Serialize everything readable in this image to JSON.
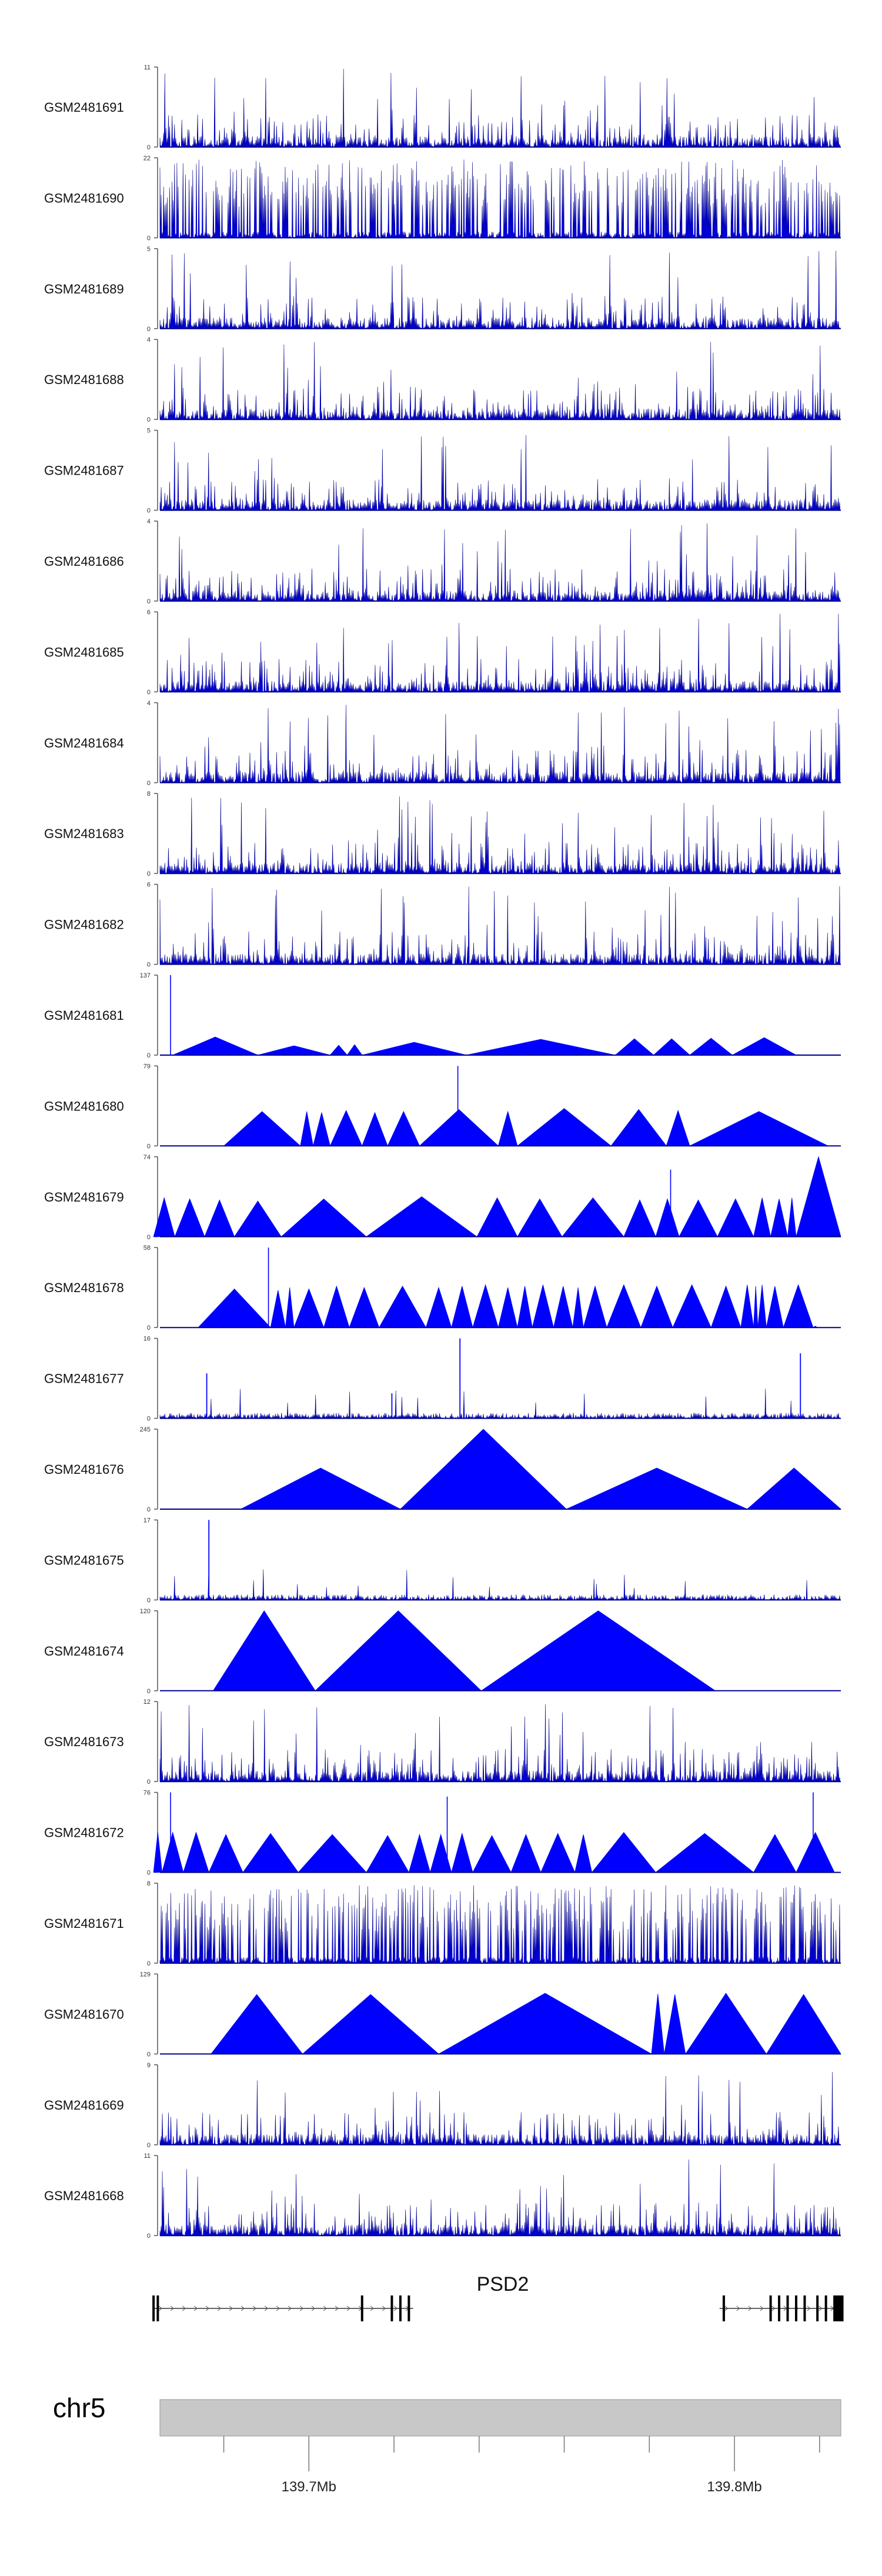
{
  "chart_data": {
    "type": "area",
    "title": "",
    "genome": "chr5",
    "region_mb": [
      139.665,
      139.825
    ],
    "colors": {
      "signal": "#0000ff",
      "signal_edge": "#00008b",
      "ideogram": "#c8c8c8",
      "gene": "#000000"
    },
    "tracks": [
      {
        "name": "GSM2481691",
        "ylim": [
          0,
          11
        ],
        "style": "dense",
        "seed": 11
      },
      {
        "name": "GSM2481690",
        "ylim": [
          0,
          22
        ],
        "style": "sparse",
        "seed": 12
      },
      {
        "name": "GSM2481689",
        "ylim": [
          0,
          5
        ],
        "style": "dense",
        "seed": 13
      },
      {
        "name": "GSM2481688",
        "ylim": [
          0,
          4
        ],
        "style": "dense",
        "seed": 14
      },
      {
        "name": "GSM2481687",
        "ylim": [
          0,
          5
        ],
        "style": "dense",
        "seed": 15
      },
      {
        "name": "GSM2481686",
        "ylim": [
          0,
          4
        ],
        "style": "dense",
        "seed": 16
      },
      {
        "name": "GSM2481685",
        "ylim": [
          0,
          6
        ],
        "style": "dense",
        "seed": 17
      },
      {
        "name": "GSM2481684",
        "ylim": [
          0,
          4
        ],
        "style": "dense",
        "seed": 18
      },
      {
        "name": "GSM2481683",
        "ylim": [
          0,
          8
        ],
        "style": "dense",
        "seed": 19
      },
      {
        "name": "GSM2481682",
        "ylim": [
          0,
          6
        ],
        "style": "dense",
        "seed": 20
      },
      {
        "name": "GSM2481681",
        "ylim": [
          0,
          137
        ],
        "style": "peaks",
        "peaks": [
          [
            139.668,
            139.688,
            31
          ],
          [
            139.688,
            139.705,
            16
          ],
          [
            139.705,
            139.709,
            17
          ],
          [
            139.709,
            139.7125,
            18
          ],
          [
            139.7125,
            139.737,
            22
          ],
          [
            139.737,
            139.772,
            27
          ],
          [
            139.772,
            139.781,
            28
          ],
          [
            139.781,
            139.7895,
            28
          ],
          [
            139.7895,
            139.7995,
            29
          ],
          [
            139.7995,
            139.8145,
            30
          ],
          [
            139.8145,
            139.8155,
            1
          ]
        ],
        "spikes": [
          [
            139.6675,
            137
          ]
        ]
      },
      {
        "name": "GSM2481680",
        "ylim": [
          0,
          79
        ],
        "style": "peaks",
        "peaks": [
          [
            139.68,
            139.698,
            34
          ],
          [
            139.698,
            139.701,
            34
          ],
          [
            139.701,
            139.705,
            33
          ],
          [
            139.705,
            139.7125,
            35
          ],
          [
            139.7125,
            139.7185,
            33
          ],
          [
            139.7185,
            139.726,
            34
          ],
          [
            139.726,
            139.7445,
            36
          ],
          [
            139.7445,
            139.749,
            34
          ],
          [
            139.749,
            139.771,
            37
          ],
          [
            139.771,
            139.784,
            36
          ],
          [
            139.784,
            139.7895,
            35
          ],
          [
            139.7895,
            139.822,
            34
          ]
        ],
        "spikes": [
          [
            139.735,
            79
          ]
        ]
      },
      {
        "name": "GSM2481679",
        "ylim": [
          0,
          74
        ],
        "style": "peaks",
        "peaks": [
          [
            139.6635,
            139.6685,
            36
          ],
          [
            139.6685,
            139.6755,
            35
          ],
          [
            139.6755,
            139.6825,
            34
          ],
          [
            139.6825,
            139.6935,
            33
          ],
          [
            139.6935,
            139.7135,
            35
          ],
          [
            139.7135,
            139.7395,
            37
          ],
          [
            139.7395,
            139.749,
            36
          ],
          [
            139.749,
            139.7595,
            35
          ],
          [
            139.7595,
            139.774,
            36
          ],
          [
            139.774,
            139.7815,
            34
          ],
          [
            139.7815,
            139.787,
            35
          ],
          [
            139.787,
            139.796,
            34
          ],
          [
            139.796,
            139.8045,
            35
          ],
          [
            139.8045,
            139.8085,
            36
          ],
          [
            139.8085,
            139.8125,
            35
          ],
          [
            139.8125,
            139.8145,
            36
          ],
          [
            139.8145,
            139.825,
            74
          ]
        ],
        "spikes": [
          [
            139.785,
            62
          ]
        ]
      },
      {
        "name": "GSM2481678",
        "ylim": [
          0,
          58
        ],
        "style": "peaks",
        "peaks": [
          [
            139.674,
            139.691,
            28
          ],
          [
            139.691,
            139.6945,
            27
          ],
          [
            139.6945,
            139.6965,
            29
          ],
          [
            139.6965,
            139.7035,
            28
          ],
          [
            139.7035,
            139.7095,
            30
          ],
          [
            139.7095,
            139.7165,
            29
          ],
          [
            139.7165,
            139.7275,
            30
          ],
          [
            139.7275,
            139.7335,
            29
          ],
          [
            139.7335,
            139.7385,
            30
          ],
          [
            139.7385,
            139.7445,
            31
          ],
          [
            139.7445,
            139.749,
            29
          ],
          [
            139.749,
            139.7525,
            30
          ],
          [
            139.7525,
            139.7575,
            31
          ],
          [
            139.7575,
            139.762,
            30
          ],
          [
            139.762,
            139.7645,
            29
          ],
          [
            139.7645,
            139.77,
            30
          ],
          [
            139.77,
            139.778,
            31
          ],
          [
            139.778,
            139.7855,
            30
          ],
          [
            139.7855,
            139.7945,
            31
          ],
          [
            139.7945,
            139.8015,
            30
          ],
          [
            139.8015,
            139.8045,
            31
          ],
          [
            139.8045,
            139.8055,
            30
          ],
          [
            139.8055,
            139.8075,
            31
          ],
          [
            139.8075,
            139.8115,
            30
          ],
          [
            139.8115,
            139.8185,
            31
          ],
          [
            139.8185,
            139.8195,
            1
          ]
        ],
        "spikes": [
          [
            139.6905,
            58
          ]
        ]
      },
      {
        "name": "GSM2481677",
        "ylim": [
          0,
          16
        ],
        "style": "sparse-spike",
        "seed": 23,
        "spikes": [
          [
            139.676,
            9
          ],
          [
            139.7195,
            5
          ],
          [
            139.7355,
            16
          ],
          [
            139.8155,
            13
          ]
        ]
      },
      {
        "name": "GSM2481676",
        "ylim": [
          0,
          245
        ],
        "style": "peaks",
        "peaks": [
          [
            139.684,
            139.7215,
            126
          ],
          [
            139.7215,
            139.7605,
            245
          ],
          [
            139.7605,
            139.803,
            126
          ],
          [
            139.803,
            139.825,
            126
          ]
        ]
      },
      {
        "name": "GSM2481675",
        "ylim": [
          0,
          17
        ],
        "style": "sparse-spike",
        "seed": 25,
        "spikes": [
          [
            139.6765,
            17
          ]
        ]
      },
      {
        "name": "GSM2481674",
        "ylim": [
          0,
          120
        ],
        "style": "peaks",
        "peaks": [
          [
            139.6775,
            139.7015,
            120
          ],
          [
            139.7015,
            139.7405,
            120
          ],
          [
            139.7405,
            139.7955,
            120
          ]
        ]
      },
      {
        "name": "GSM2481673",
        "ylim": [
          0,
          12
        ],
        "style": "dense",
        "seed": 27
      },
      {
        "name": "GSM2481672",
        "ylim": [
          0,
          76
        ],
        "style": "peaks",
        "peaks": [
          [
            139.6635,
            139.6655,
            38
          ],
          [
            139.6655,
            139.6705,
            38
          ],
          [
            139.6705,
            139.6765,
            38
          ],
          [
            139.6765,
            139.6845,
            36
          ],
          [
            139.6845,
            139.6975,
            37
          ],
          [
            139.6975,
            139.7135,
            36
          ],
          [
            139.7135,
            139.7235,
            35
          ],
          [
            139.7235,
            139.7285,
            36
          ],
          [
            139.7285,
            139.7335,
            36
          ],
          [
            139.7335,
            139.7385,
            37
          ],
          [
            139.7385,
            139.7475,
            35
          ],
          [
            139.7475,
            139.7545,
            36
          ],
          [
            139.7545,
            139.7625,
            37
          ],
          [
            139.7625,
            139.7665,
            36
          ],
          [
            139.7665,
            139.7815,
            38
          ],
          [
            139.7815,
            139.8045,
            37
          ],
          [
            139.8045,
            139.8145,
            36
          ],
          [
            139.8145,
            139.8235,
            38
          ]
        ],
        "spikes": [
          [
            139.6675,
            76
          ],
          [
            139.7325,
            72
          ],
          [
            139.8185,
            76
          ]
        ]
      },
      {
        "name": "GSM2481671",
        "ylim": [
          0,
          8
        ],
        "style": "sparse",
        "seed": 31
      },
      {
        "name": "GSM2481670",
        "ylim": [
          0,
          129
        ],
        "style": "peaks",
        "peaks": [
          [
            139.677,
            139.6985,
            96
          ],
          [
            139.6985,
            139.7305,
            96
          ],
          [
            139.7305,
            139.7805,
            98
          ],
          [
            139.7805,
            139.7835,
            97
          ],
          [
            139.7835,
            139.7885,
            96
          ],
          [
            139.7885,
            139.8075,
            98
          ],
          [
            139.8075,
            139.825,
            96
          ]
        ]
      },
      {
        "name": "GSM2481669",
        "ylim": [
          0,
          9
        ],
        "style": "dense",
        "seed": 33
      },
      {
        "name": "GSM2481668",
        "ylim": [
          0,
          11
        ],
        "style": "dense",
        "seed": 34
      }
    ],
    "gene_track": {
      "gene": "PSD2",
      "transcripts": [
        {
          "start": 139.6635,
          "end": 139.7245,
          "strand": "+",
          "exons": [
            139.6635,
            139.6645,
            139.7125,
            139.7195,
            139.7215,
            139.7235
          ]
        },
        {
          "start": 139.7965,
          "end": 139.825,
          "strand": "+",
          "exons": [
            139.7975,
            139.8085,
            139.8105,
            139.8125,
            139.8145,
            139.8165,
            139.8195,
            139.8215,
            139.8235,
            139.8245,
            139.8248
          ]
        }
      ]
    },
    "ideogram": {
      "chromosome": "chr5",
      "ticks_mb": [
        139.7,
        139.8
      ],
      "tick_labels": [
        "139.7Mb",
        "139.8Mb"
      ],
      "minor_ticks_mb": [
        139.68,
        139.72,
        139.74,
        139.76,
        139.78,
        139.82
      ]
    }
  }
}
